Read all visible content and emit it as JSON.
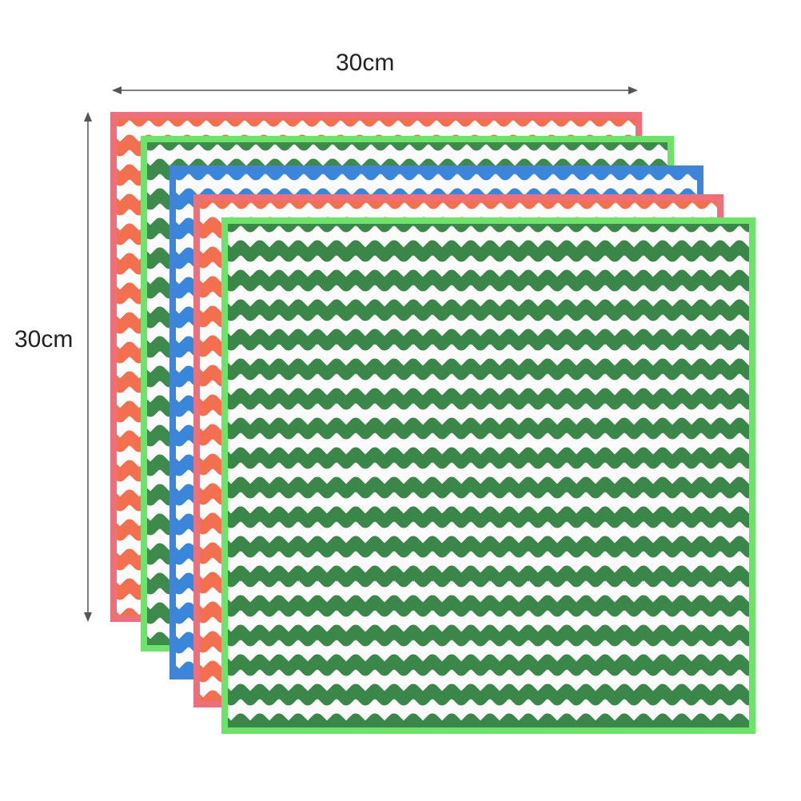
{
  "dimensions": {
    "width_label": "30cm",
    "height_label": "30cm"
  },
  "cloths": [
    {
      "border_color": "#ec6f7c",
      "stripe_color": "#f26f4f"
    },
    {
      "border_color": "#6ee26a",
      "stripe_color": "#3e8a4c"
    },
    {
      "border_color": "#3f84d6",
      "stripe_color": "#3a86da"
    },
    {
      "border_color": "#ec6f7c",
      "stripe_color": "#f26f4f"
    },
    {
      "border_color": "#6ee26a",
      "stripe_color": "#3b8649"
    }
  ],
  "arrow_color": "#555555"
}
